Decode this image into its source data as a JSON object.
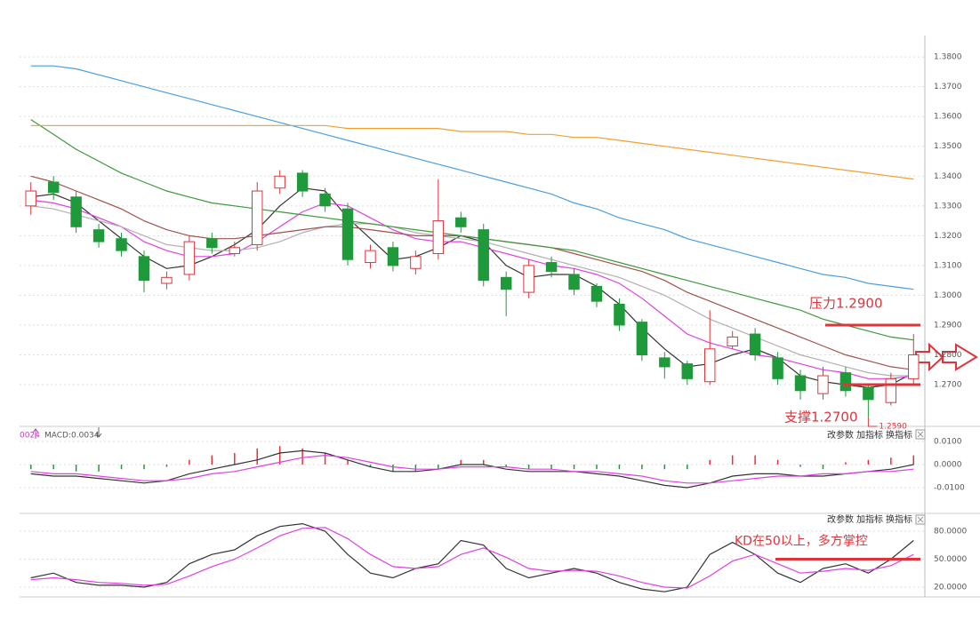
{
  "chart_data": [
    {
      "type": "candlestick",
      "categories": [
        null,
        null,
        null,
        null,
        null,
        null,
        null,
        null,
        null,
        null,
        null,
        null,
        null,
        null,
        null,
        null,
        null,
        null,
        null,
        null,
        null,
        null,
        null,
        null,
        null,
        null,
        null,
        null,
        null,
        null,
        null,
        null,
        null,
        null,
        null,
        null,
        null,
        null,
        null,
        null
      ],
      "open": [
        1.33,
        1.338,
        1.333,
        1.322,
        1.319,
        1.313,
        1.304,
        1.307,
        1.319,
        1.314,
        1.317,
        1.336,
        1.341,
        1.334,
        1.329,
        1.311,
        1.316,
        1.309,
        1.314,
        1.326,
        1.322,
        1.306,
        1.301,
        1.311,
        1.307,
        1.303,
        1.297,
        1.291,
        1.279,
        1.277,
        1.271,
        1.283,
        1.287,
        1.279,
        1.273,
        1.267,
        1.274,
        1.269,
        1.264,
        1.272
      ],
      "high": [
        1.338,
        1.34,
        1.335,
        1.324,
        1.321,
        1.315,
        1.308,
        1.32,
        1.321,
        1.318,
        1.338,
        1.342,
        1.342,
        1.336,
        1.331,
        1.317,
        1.318,
        1.315,
        1.339,
        1.328,
        1.324,
        1.308,
        1.312,
        1.313,
        1.309,
        1.304,
        1.299,
        1.292,
        1.281,
        1.278,
        1.295,
        1.288,
        1.289,
        1.281,
        1.275,
        1.276,
        1.276,
        1.27,
        1.274,
        1.287
      ],
      "low": [
        1.327,
        1.332,
        1.321,
        1.316,
        1.313,
        1.301,
        1.302,
        1.305,
        1.314,
        1.313,
        1.315,
        1.334,
        1.333,
        1.328,
        1.31,
        1.309,
        1.308,
        1.307,
        1.312,
        1.321,
        1.303,
        1.293,
        1.299,
        1.306,
        1.3,
        1.296,
        1.288,
        1.278,
        1.272,
        1.27,
        1.27,
        1.282,
        1.278,
        1.27,
        1.265,
        1.265,
        1.266,
        1.259,
        1.263,
        1.27
      ],
      "close": [
        1.335,
        1.3345,
        1.323,
        1.318,
        1.315,
        1.305,
        1.306,
        1.318,
        1.316,
        1.316,
        1.335,
        1.34,
        1.335,
        1.33,
        1.312,
        1.315,
        1.31,
        1.313,
        1.325,
        1.323,
        1.305,
        1.302,
        1.31,
        1.308,
        1.302,
        1.298,
        1.29,
        1.28,
        1.276,
        1.272,
        1.282,
        1.286,
        1.28,
        1.272,
        1.268,
        1.273,
        1.268,
        1.265,
        1.272,
        1.28
      ],
      "up_color": "#e0343c",
      "down_color": "#1f9a3a",
      "series": [
        {
          "color": "#333333",
          "values": [
            1.333,
            1.334,
            1.331,
            1.325,
            1.319,
            1.313,
            1.309,
            1.31,
            1.313,
            1.317,
            1.322,
            1.33,
            1.336,
            1.335,
            1.326,
            1.319,
            1.312,
            1.313,
            1.316,
            1.32,
            1.318,
            1.31,
            1.306,
            1.307,
            1.307,
            1.303,
            1.297,
            1.289,
            1.282,
            1.276,
            1.277,
            1.28,
            1.282,
            1.279,
            1.273,
            1.271,
            1.27,
            1.269,
            1.27,
            1.274
          ]
        },
        {
          "color": "#e040e0",
          "values": [
            1.332,
            1.331,
            1.329,
            1.326,
            1.323,
            1.318,
            1.315,
            1.313,
            1.313,
            1.314,
            1.318,
            1.323,
            1.328,
            1.331,
            1.33,
            1.326,
            1.322,
            1.319,
            1.318,
            1.318,
            1.316,
            1.314,
            1.312,
            1.31,
            1.309,
            1.307,
            1.304,
            1.299,
            1.293,
            1.287,
            1.284,
            1.282,
            1.28,
            1.279,
            1.277,
            1.275,
            1.274,
            1.272,
            1.272,
            1.273
          ]
        },
        {
          "color": "#b0b0b0",
          "values": [
            1.33,
            1.329,
            1.327,
            1.325,
            1.323,
            1.32,
            1.317,
            1.316,
            1.315,
            1.315,
            1.316,
            1.318,
            1.321,
            1.323,
            1.324,
            1.324,
            1.323,
            1.321,
            1.32,
            1.319,
            1.318,
            1.316,
            1.314,
            1.312,
            1.31,
            1.308,
            1.306,
            1.303,
            1.3,
            1.296,
            1.292,
            1.289,
            1.286,
            1.283,
            1.28,
            1.278,
            1.276,
            1.274,
            1.273,
            1.273
          ]
        },
        {
          "color": "#a0524a",
          "values": [
            1.34,
            1.338,
            1.335,
            1.332,
            1.329,
            1.325,
            1.322,
            1.32,
            1.319,
            1.319,
            1.32,
            1.321,
            1.322,
            1.323,
            1.323,
            1.322,
            1.321,
            1.32,
            1.32,
            1.32,
            1.319,
            1.318,
            1.317,
            1.316,
            1.314,
            1.312,
            1.31,
            1.308,
            1.305,
            1.301,
            1.298,
            1.295,
            1.292,
            1.289,
            1.286,
            1.283,
            1.28,
            1.278,
            1.276,
            1.275
          ]
        },
        {
          "color": "#3c9a3c",
          "values": [
            1.359,
            1.354,
            1.349,
            1.345,
            1.341,
            1.338,
            1.335,
            1.333,
            1.331,
            1.33,
            1.329,
            1.328,
            1.327,
            1.326,
            1.325,
            1.324,
            1.323,
            1.322,
            1.321,
            1.32,
            1.319,
            1.318,
            1.317,
            1.316,
            1.315,
            1.313,
            1.311,
            1.309,
            1.307,
            1.305,
            1.303,
            1.301,
            1.299,
            1.297,
            1.295,
            1.292,
            1.29,
            1.288,
            1.286,
            1.285
          ]
        },
        {
          "color": "#4a9ee0",
          "values": [
            1.377,
            1.377,
            1.376,
            1.374,
            1.372,
            1.37,
            1.368,
            1.366,
            1.364,
            1.362,
            1.36,
            1.358,
            1.356,
            1.354,
            1.352,
            1.35,
            1.348,
            1.346,
            1.344,
            1.342,
            1.34,
            1.338,
            1.336,
            1.334,
            1.331,
            1.329,
            1.326,
            1.324,
            1.322,
            1.319,
            1.317,
            1.315,
            1.313,
            1.311,
            1.309,
            1.307,
            1.306,
            1.304,
            1.303,
            1.302
          ]
        },
        {
          "color": "#f0a030",
          "values": [
            1.357,
            1.357,
            1.357,
            1.357,
            1.357,
            1.357,
            1.357,
            1.357,
            1.357,
            1.357,
            1.357,
            1.357,
            1.357,
            1.357,
            1.356,
            1.356,
            1.356,
            1.356,
            1.356,
            1.355,
            1.355,
            1.355,
            1.354,
            1.354,
            1.353,
            1.353,
            1.352,
            1.351,
            1.35,
            1.349,
            1.348,
            1.347,
            1.346,
            1.345,
            1.344,
            1.343,
            1.342,
            1.341,
            1.34,
            1.339
          ]
        }
      ],
      "ylim": [
        1.2566,
        1.3857
      ],
      "yticks": [
        {
          "value": 1.38,
          "label": "1.3800"
        },
        {
          "value": 1.37,
          "label": "1.3700"
        },
        {
          "value": 1.36,
          "label": "1.3600"
        },
        {
          "value": 1.35,
          "label": "1.3500"
        },
        {
          "value": 1.34,
          "label": "1.3400"
        },
        {
          "value": 1.33,
          "label": "1.3300"
        },
        {
          "value": 1.32,
          "label": "1.3200"
        },
        {
          "value": 1.31,
          "label": "1.3100"
        },
        {
          "value": 1.3,
          "label": "1.3000"
        },
        {
          "value": 1.29,
          "label": "1.2900"
        },
        {
          "value": 1.28,
          "label": "1.2800"
        },
        {
          "value": 1.27,
          "label": "1.2700"
        }
      ],
      "grid": true,
      "annotations": [
        {
          "text": "压力1.2900",
          "value": 1.29,
          "color": "#e0343c"
        },
        {
          "text": "支撑1.2700",
          "value": 1.27,
          "color": "#e0343c"
        }
      ],
      "low_label": "1.2590"
    },
    {
      "type": "macd",
      "header": [
        "0024",
        "MACD:0.0034"
      ],
      "buttons": [
        "改参数",
        "加指标",
        "换指标"
      ],
      "histogram": [
        -0.002,
        -0.002,
        -0.003,
        -0.003,
        -0.002,
        -0.002,
        -0.001,
        0.002,
        0.004,
        0.005,
        0.007,
        0.008,
        0.007,
        0.005,
        0.002,
        -0.001,
        -0.003,
        -0.003,
        -0.002,
        0.002,
        0.002,
        -0.001,
        -0.002,
        -0.002,
        -0.002,
        -0.002,
        -0.002,
        -0.002,
        -0.002,
        -0.002,
        0.002,
        0.004,
        0.004,
        0.002,
        -0.001,
        -0.002,
        0.001,
        0.002,
        0.003,
        0.004
      ],
      "up_color": "#e0343c",
      "down_color": "#1f9a3a",
      "series": [
        {
          "color": "#333333",
          "values": [
            -0.004,
            -0.005,
            -0.005,
            -0.006,
            -0.007,
            -0.008,
            -0.007,
            -0.004,
            -0.002,
            0.0,
            0.002,
            0.005,
            0.006,
            0.005,
            0.002,
            -0.001,
            -0.003,
            -0.003,
            -0.002,
            0.0,
            0.0,
            -0.002,
            -0.003,
            -0.003,
            -0.003,
            -0.004,
            -0.005,
            -0.007,
            -0.009,
            -0.01,
            -0.008,
            -0.005,
            -0.004,
            -0.004,
            -0.005,
            -0.005,
            -0.004,
            -0.003,
            -0.002,
            0.0
          ]
        },
        {
          "color": "#e040e0",
          "values": [
            -0.003,
            -0.004,
            -0.004,
            -0.005,
            -0.006,
            -0.007,
            -0.007,
            -0.006,
            -0.004,
            -0.003,
            -0.001,
            0.001,
            0.003,
            0.004,
            0.003,
            0.001,
            -0.001,
            -0.002,
            -0.002,
            -0.001,
            -0.001,
            -0.001,
            -0.002,
            -0.002,
            -0.003,
            -0.003,
            -0.004,
            -0.005,
            -0.007,
            -0.008,
            -0.008,
            -0.007,
            -0.006,
            -0.005,
            -0.005,
            -0.004,
            -0.004,
            -0.003,
            -0.003,
            -0.002
          ]
        }
      ],
      "ylim": [
        -0.02,
        0.0154
      ],
      "yticks": [
        {
          "value": 0.01,
          "label": "0.0100"
        },
        {
          "value": 0,
          "label": "0.0000"
        },
        {
          "value": -0.01,
          "label": "-0.0100"
        }
      ],
      "grid": true
    },
    {
      "type": "kd",
      "buttons": [
        "改参数",
        "加指标",
        "换指标"
      ],
      "series": [
        {
          "color": "#333333",
          "values": [
            30,
            35,
            25,
            22,
            22,
            20,
            25,
            45,
            55,
            60,
            75,
            85,
            88,
            80,
            55,
            35,
            30,
            40,
            45,
            70,
            65,
            40,
            30,
            35,
            40,
            35,
            25,
            18,
            15,
            20,
            55,
            68,
            55,
            35,
            25,
            40,
            45,
            35,
            50,
            70
          ]
        },
        {
          "color": "#e040e0",
          "values": [
            28,
            30,
            28,
            25,
            24,
            22,
            23,
            32,
            42,
            50,
            62,
            75,
            83,
            84,
            72,
            55,
            42,
            40,
            42,
            55,
            62,
            52,
            40,
            37,
            38,
            37,
            32,
            25,
            20,
            19,
            32,
            48,
            55,
            45,
            35,
            37,
            40,
            38,
            43,
            55
          ]
        }
      ],
      "ylim": [
        11.4,
        95.2
      ],
      "yticks": [
        {
          "value": 80,
          "label": "80.0000"
        },
        {
          "value": 50,
          "label": "50.0000"
        },
        {
          "value": 20,
          "label": "20.0000"
        }
      ],
      "grid": true,
      "annotations": [
        {
          "text": "KD在50以上，多方掌控",
          "value": 50,
          "color": "#e0343c"
        }
      ]
    }
  ]
}
